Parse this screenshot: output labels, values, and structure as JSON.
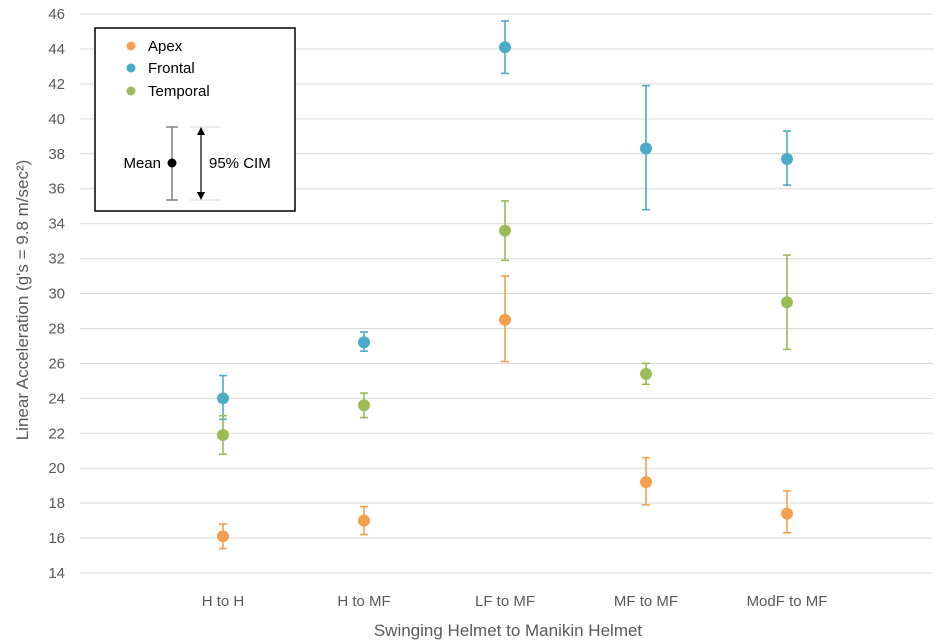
{
  "chart_data": {
    "type": "scatter",
    "xlabel": "Swinging Helmet to Manikin Helmet",
    "ylabel": "Linear Acceleration (g's = 9.8 m/sec²)",
    "ylim": [
      14,
      46
    ],
    "yticks": [
      14,
      16,
      18,
      20,
      22,
      24,
      26,
      28,
      30,
      32,
      34,
      36,
      38,
      40,
      42,
      44,
      46
    ],
    "grid": true,
    "legend_placement": "top-left",
    "categories": [
      "H to H",
      "H to MF",
      "LF to MF",
      "MF to MF",
      "ModF to MF"
    ],
    "series": [
      {
        "name": "Apex",
        "color": "#f4a04d",
        "means": [
          16.1,
          17.0,
          28.5,
          19.2,
          17.4
        ],
        "lower": [
          15.4,
          16.2,
          26.1,
          17.9,
          16.3
        ],
        "upper": [
          16.8,
          17.8,
          31.0,
          20.6,
          18.7
        ]
      },
      {
        "name": "Frontal",
        "color": "#4bacc6",
        "means": [
          24.0,
          27.2,
          44.1,
          38.3,
          37.7
        ],
        "lower": [
          22.8,
          26.7,
          42.6,
          34.8,
          36.2
        ],
        "upper": [
          25.3,
          27.8,
          45.6,
          41.9,
          39.3
        ]
      },
      {
        "name": "Temporal",
        "color": "#9bbb59",
        "means": [
          21.9,
          23.6,
          33.6,
          25.4,
          29.5
        ],
        "lower": [
          20.8,
          22.9,
          31.9,
          24.8,
          26.8
        ],
        "upper": [
          23.0,
          24.3,
          35.3,
          26.0,
          32.2
        ]
      }
    ],
    "legend_key": {
      "mean_label": "Mean",
      "ci_label": "95% CIM"
    }
  }
}
